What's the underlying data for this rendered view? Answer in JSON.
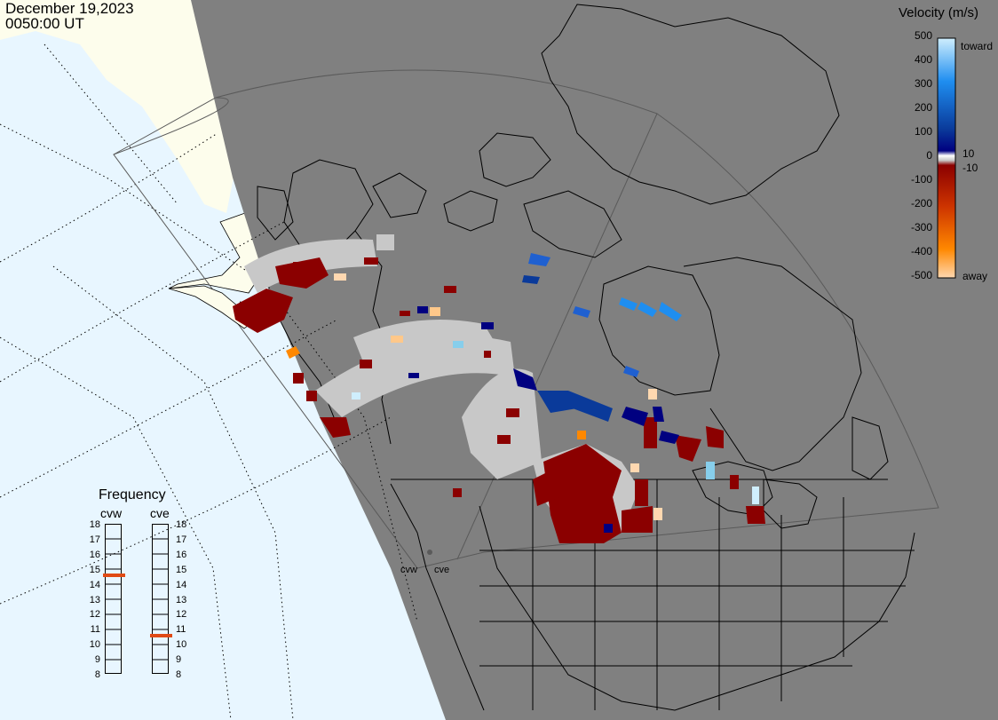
{
  "header": {
    "date": "December 19,2023",
    "time": "0050:00 UT"
  },
  "colorbar": {
    "title": "Velocity (m/s)",
    "ticks": [
      "500",
      "400",
      "300",
      "200",
      "100",
      "0",
      "-100",
      "-200",
      "-300",
      "-400",
      "-500"
    ],
    "toward_label": "toward",
    "away_label": "away",
    "small_pos": "10",
    "small_neg": "-10",
    "colors": {
      "toward_high": "#cfeefd",
      "toward_mid": "#1f8ef0",
      "toward_low": "#0a3a9a",
      "toward_min": "#000080",
      "zero": "#c8c8c8",
      "away_min": "#8b0000",
      "away_mid": "#cc3300",
      "away_high_orange": "#ff8800",
      "away_max": "#ffd8b0"
    }
  },
  "frequency": {
    "title": "Frequency",
    "labels": [
      "18",
      "17",
      "16",
      "15",
      "14",
      "13",
      "12",
      "11",
      "10",
      "9",
      "8"
    ],
    "radars": [
      {
        "name": "cvw",
        "freq_mhz": 15
      },
      {
        "name": "cve",
        "freq_mhz": 11
      }
    ]
  },
  "map": {
    "colors": {
      "ocean": "#e8f6ff",
      "land_day": "#fdfdec",
      "night": "#808080",
      "ground_scatter": "#c8c8c8",
      "coast": "#000000"
    },
    "sites": [
      "cvw",
      "cve"
    ]
  }
}
